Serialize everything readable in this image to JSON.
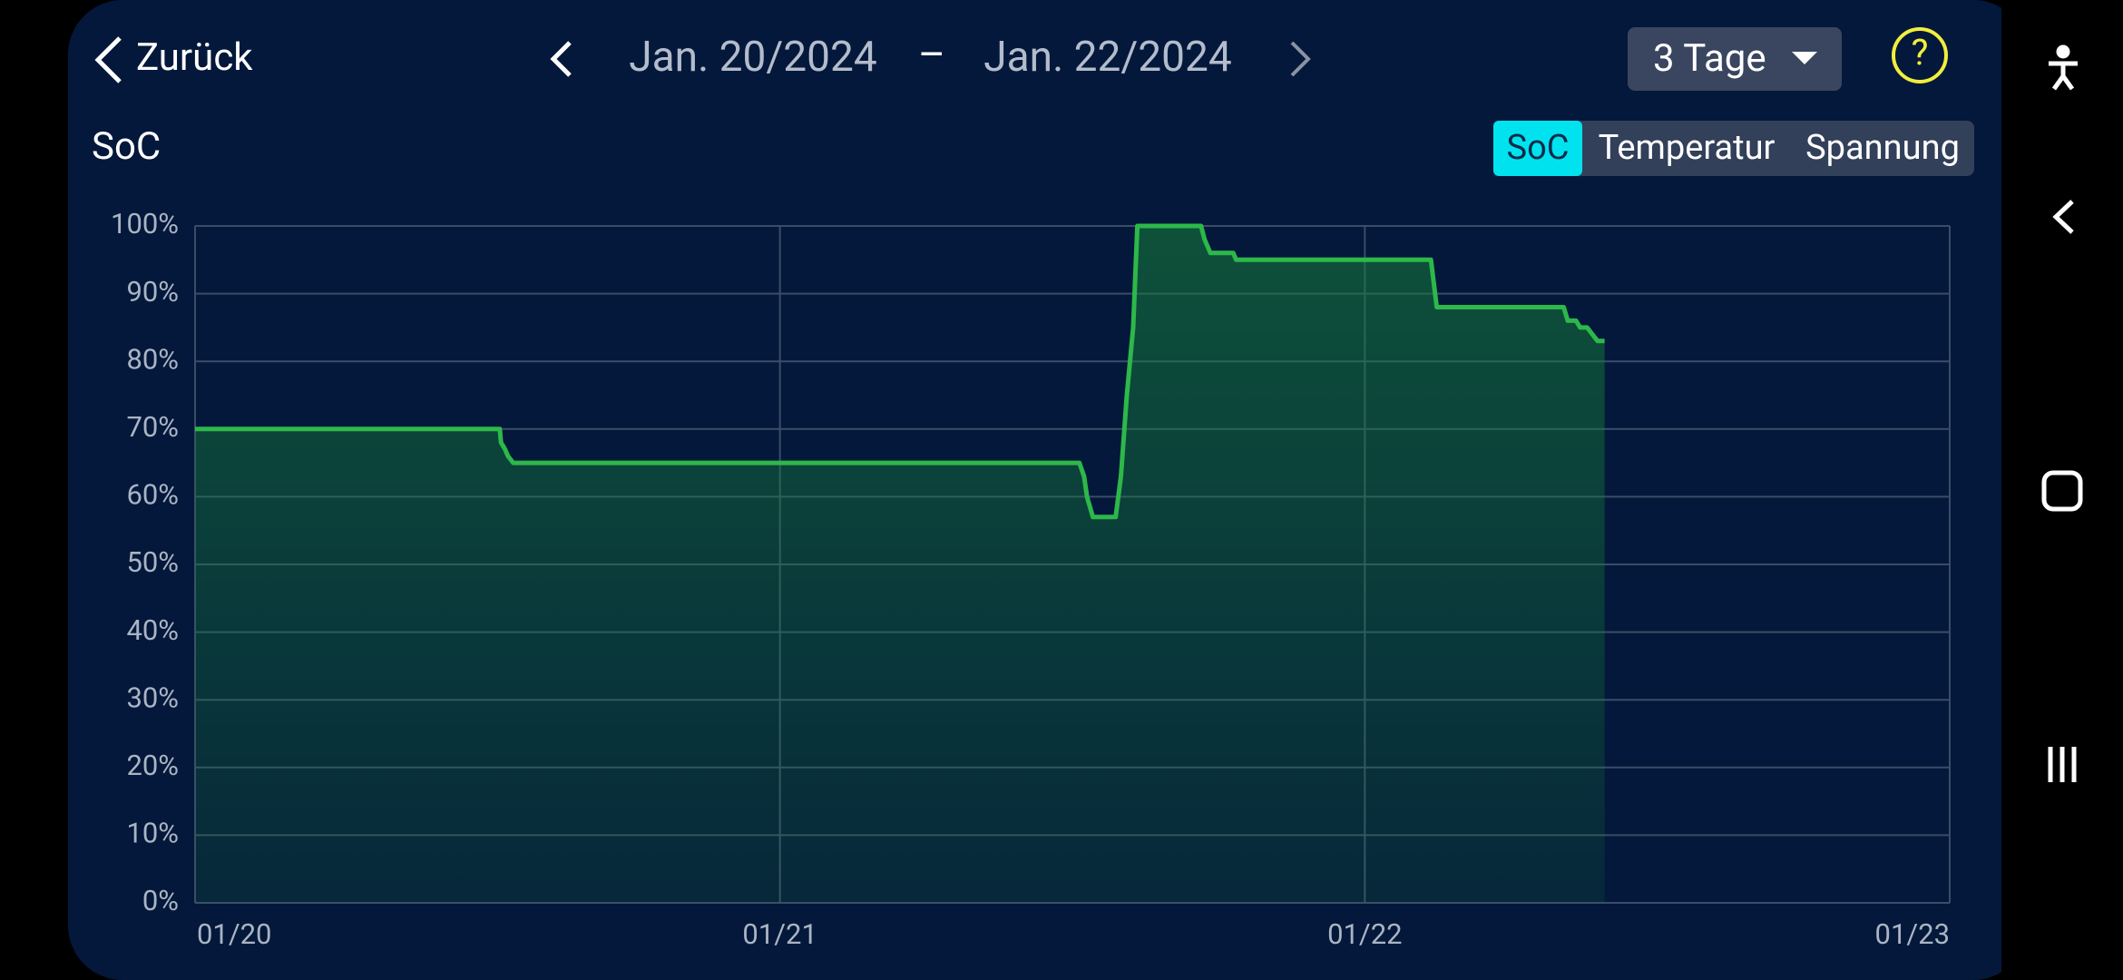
{
  "header": {
    "back": "Zurück",
    "date_from": "Jan. 20/2024",
    "date_separator": "–",
    "date_to": "Jan. 22/2024",
    "range_select": "3 Tage",
    "help": "?"
  },
  "tabs": [
    "SoC",
    "Temperatur",
    "Spannung"
  ],
  "active_tab": 0,
  "chart_data": {
    "type": "line",
    "title": "SoC",
    "x": [
      0,
      0.521,
      0.523,
      0.53,
      0.535,
      0.544,
      1.512,
      1.52,
      1.525,
      1.535,
      1.574,
      1.583,
      1.593,
      1.604,
      1.611,
      1.72,
      1.726,
      1.736,
      1.775,
      1.78,
      2.113,
      2.123,
      2.34,
      2.347,
      2.361,
      2.368,
      2.38,
      2.389,
      2.398,
      2.41
    ],
    "values": [
      70,
      70,
      68,
      67,
      66,
      65,
      65,
      63,
      60,
      57,
      57,
      63,
      75,
      85,
      100,
      100,
      98,
      96,
      96,
      95,
      95,
      88,
      88,
      86,
      86,
      85,
      85,
      84,
      83,
      83
    ],
    "color": "#2db84a",
    "fill": true,
    "xlim": [
      0,
      3
    ],
    "xticks": [
      {
        "value": 0,
        "label": "01/20"
      },
      {
        "value": 1,
        "label": "01/21"
      },
      {
        "value": 2,
        "label": "01/22"
      },
      {
        "value": 3,
        "label": "01/23"
      }
    ],
    "ylim": [
      0,
      100
    ],
    "yticks": [
      {
        "value": 0,
        "label": "0%"
      },
      {
        "value": 10,
        "label": "10%"
      },
      {
        "value": 20,
        "label": "20%"
      },
      {
        "value": 30,
        "label": "30%"
      },
      {
        "value": 40,
        "label": "40%"
      },
      {
        "value": 50,
        "label": "50%"
      },
      {
        "value": 60,
        "label": "60%"
      },
      {
        "value": 70,
        "label": "70%"
      },
      {
        "value": 80,
        "label": "80%"
      },
      {
        "value": 90,
        "label": "90%"
      },
      {
        "value": 100,
        "label": "100%"
      }
    ],
    "grid": true
  }
}
